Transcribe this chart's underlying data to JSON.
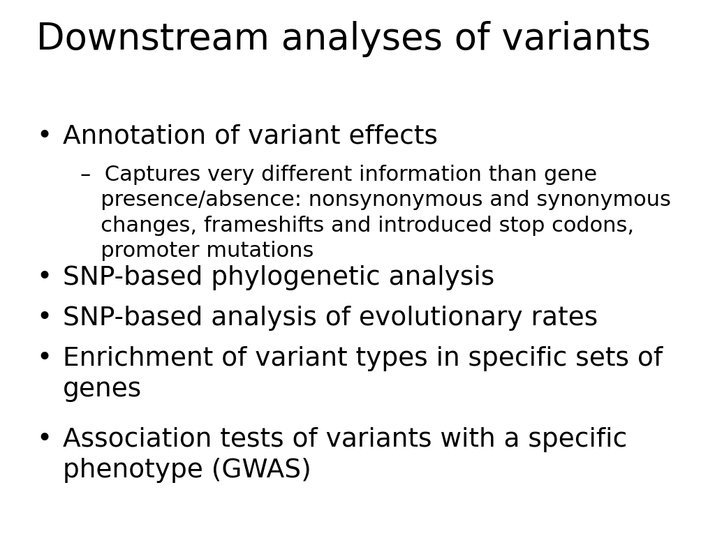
{
  "title": "Downstream analyses of variants",
  "title_fontsize": 38,
  "background_color": "#ffffff",
  "text_color": "#000000",
  "font_family": "DejaVu Sans",
  "content": [
    {
      "type": "bullet",
      "text": "Annotation of variant effects",
      "fontsize": 27,
      "indent": 0
    },
    {
      "type": "sub",
      "line1": "–  Captures very different information than gene",
      "line2": "   presence/absence: nonsynonymous and synonymous",
      "line3": "   changes, frameshifts and introduced stop codons,",
      "line4": "   promoter mutations",
      "fontsize": 22,
      "indent": 1
    },
    {
      "type": "bullet",
      "text": "SNP-based phylogenetic analysis",
      "fontsize": 27,
      "indent": 0
    },
    {
      "type": "bullet",
      "text": "SNP-based analysis of evolutionary rates",
      "fontsize": 27,
      "indent": 0
    },
    {
      "type": "bullet",
      "text": "Enrichment of variant types in specific sets of\ngenes",
      "fontsize": 27,
      "indent": 0
    },
    {
      "type": "bullet",
      "text": "Association tests of variants with a specific\nphenotype (GWAS)",
      "fontsize": 27,
      "indent": 0
    }
  ]
}
